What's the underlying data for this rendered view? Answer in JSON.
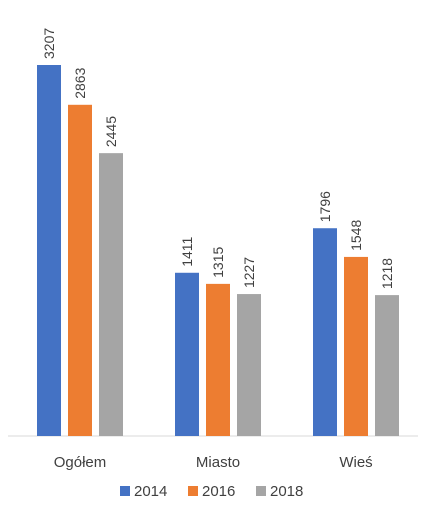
{
  "chart_data": {
    "type": "bar",
    "title": "",
    "xlabel": "",
    "ylabel": "",
    "categories": [
      "Ogółem",
      "Miasto",
      "Wieś"
    ],
    "series": [
      {
        "name": "2014",
        "color": "#4472C4",
        "values": [
          3207,
          1411,
          1796
        ]
      },
      {
        "name": "2016",
        "color": "#ED7D31",
        "values": [
          2863,
          1315,
          1548
        ]
      },
      {
        "name": "2018",
        "color": "#A5A5A5",
        "values": [
          2445,
          1227,
          1218
        ]
      }
    ],
    "ylim": [
      0,
      3207
    ],
    "grid": false,
    "legend_position": "bottom"
  }
}
